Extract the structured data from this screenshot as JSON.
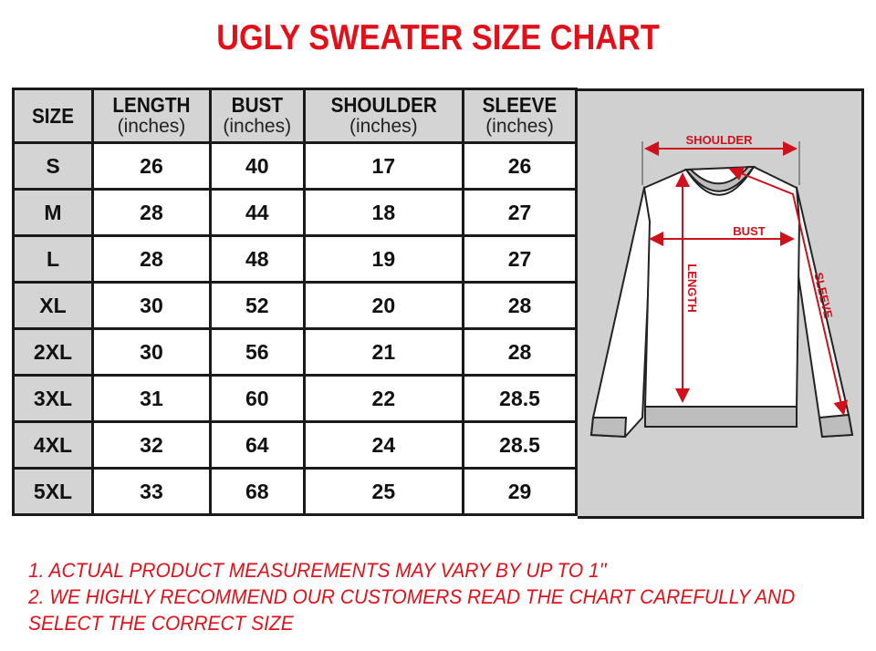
{
  "title": "UGLY SWEATER SIZE CHART",
  "chart_data": {
    "type": "table",
    "columns": [
      {
        "name": "SIZE",
        "unit": ""
      },
      {
        "name": "LENGTH",
        "unit": "(inches)"
      },
      {
        "name": "BUST",
        "unit": "(inches)"
      },
      {
        "name": "SHOULDER",
        "unit": "(inches)"
      },
      {
        "name": "SLEEVE",
        "unit": "(inches)"
      }
    ],
    "rows": [
      [
        "S",
        "26",
        "40",
        "17",
        "26"
      ],
      [
        "M",
        "28",
        "44",
        "18",
        "27"
      ],
      [
        "L",
        "28",
        "48",
        "19",
        "27"
      ],
      [
        "XL",
        "30",
        "52",
        "20",
        "28"
      ],
      [
        "2XL",
        "30",
        "56",
        "21",
        "28"
      ],
      [
        "3XL",
        "31",
        "60",
        "22",
        "28.5"
      ],
      [
        "4XL",
        "32",
        "64",
        "24",
        "28.5"
      ],
      [
        "5XL",
        "33",
        "68",
        "25",
        "29"
      ]
    ]
  },
  "diagram": {
    "labels": {
      "shoulder": "SHOULDER",
      "bust": "BUST",
      "length": "LENGTH",
      "sleeve": "SLEEVE"
    }
  },
  "notes": [
    "1. ACTUAL PRODUCT MEASUREMENTS MAY VARY BY UP TO 1''",
    "2. WE HIGHLY RECOMMEND OUR CUSTOMERS READ THE CHART CAREFULLY AND",
    "SELECT THE CORRECT SIZE"
  ],
  "colors": {
    "accent": "#e3101a",
    "header_bg": "#d4d4d4",
    "diagram_bg": "#d0d0d0"
  }
}
